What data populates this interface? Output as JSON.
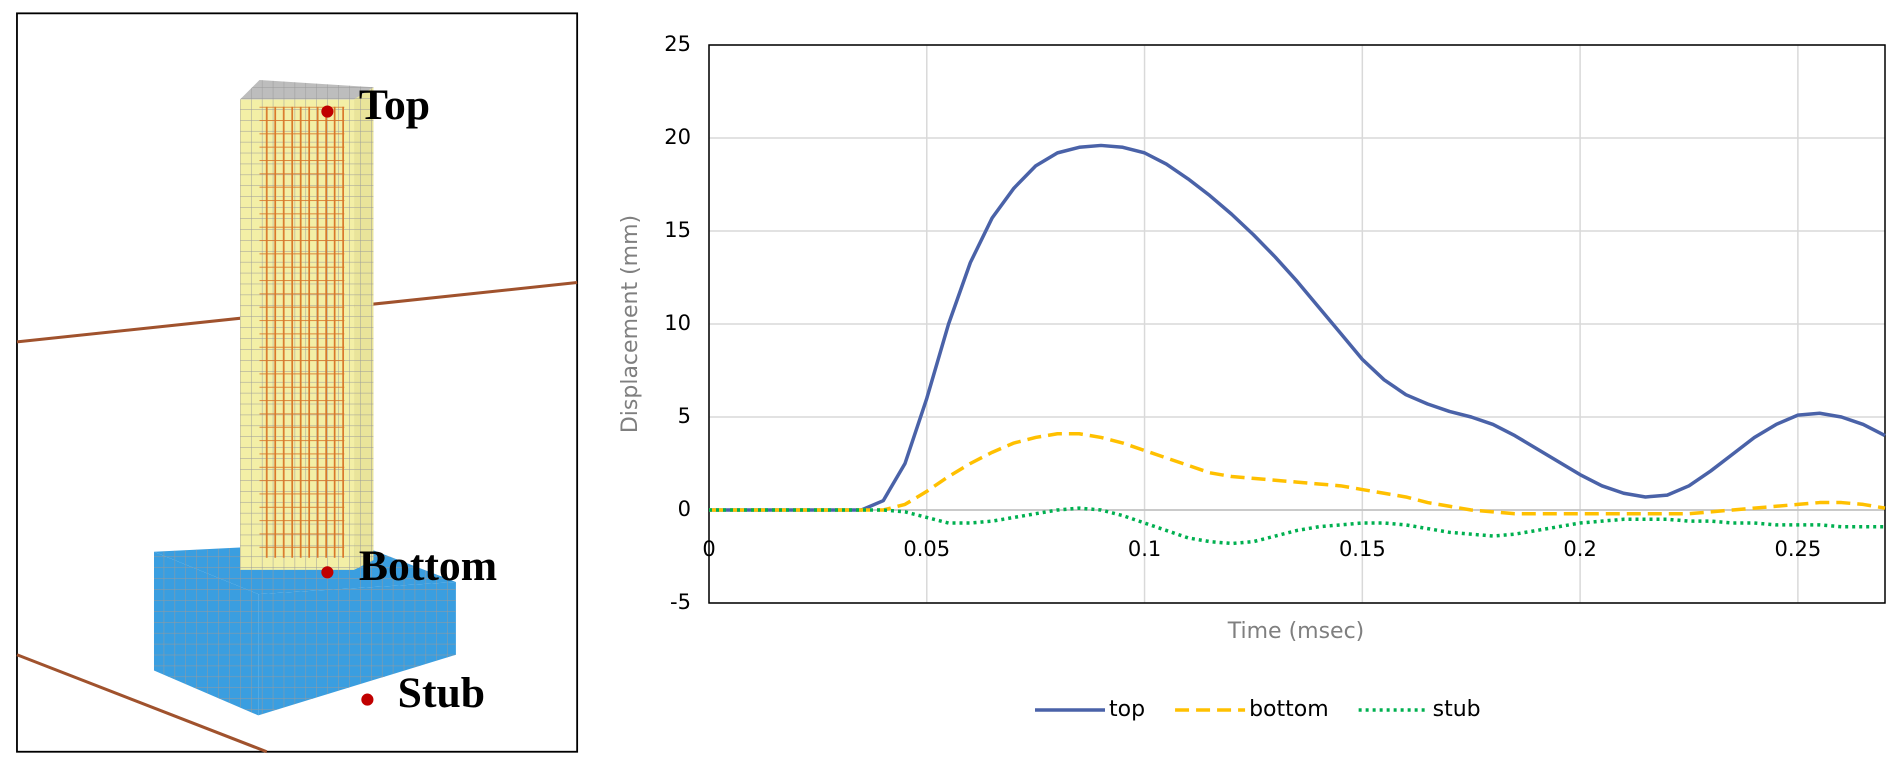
{
  "chart_data": {
    "type": "line",
    "annotations": [
      "Top",
      "Bottom",
      "Stub"
    ],
    "xlabel": "Time (msec)",
    "ylabel": "Displacement (mm)",
    "x": [
      0,
      0.005,
      0.01,
      0.015,
      0.02,
      0.025,
      0.03,
      0.035,
      0.04,
      0.045,
      0.05,
      0.055,
      0.06,
      0.065,
      0.07,
      0.075,
      0.08,
      0.085,
      0.09,
      0.095,
      0.1,
      0.105,
      0.11,
      0.115,
      0.12,
      0.125,
      0.13,
      0.135,
      0.14,
      0.145,
      0.15,
      0.155,
      0.16,
      0.165,
      0.17,
      0.175,
      0.18,
      0.185,
      0.19,
      0.195,
      0.2,
      0.205,
      0.21,
      0.215,
      0.22,
      0.225,
      0.23,
      0.235,
      0.24,
      0.245,
      0.25,
      0.255,
      0.26,
      0.265,
      0.27
    ],
    "series": [
      {
        "name": "top",
        "color": "#4a62a8",
        "style": "solid",
        "values": [
          0,
          0,
          0,
          0,
          0,
          0,
          0,
          0,
          0.5,
          2.5,
          6,
          10,
          13.3,
          15.7,
          17.3,
          18.5,
          19.2,
          19.5,
          19.6,
          19.5,
          19.2,
          18.6,
          17.8,
          16.9,
          15.9,
          14.8,
          13.6,
          12.3,
          10.9,
          9.5,
          8.1,
          7.0,
          6.2,
          5.7,
          5.3,
          5.0,
          4.6,
          4.0,
          3.3,
          2.6,
          1.9,
          1.3,
          0.9,
          0.7,
          0.8,
          1.3,
          2.1,
          3.0,
          3.9,
          4.6,
          5.1,
          5.2,
          5.0,
          4.6,
          4.0
        ]
      },
      {
        "name": "bottom",
        "color": "#ffc000",
        "style": "dashed",
        "values": [
          0,
          0,
          0,
          0,
          0,
          0,
          0,
          0,
          0,
          0.3,
          1.0,
          1.8,
          2.5,
          3.1,
          3.6,
          3.9,
          4.1,
          4.1,
          3.9,
          3.6,
          3.2,
          2.8,
          2.4,
          2.0,
          1.8,
          1.7,
          1.6,
          1.5,
          1.4,
          1.3,
          1.1,
          0.9,
          0.7,
          0.4,
          0.2,
          0.0,
          -0.1,
          -0.2,
          -0.2,
          -0.2,
          -0.2,
          -0.2,
          -0.2,
          -0.2,
          -0.2,
          -0.2,
          -0.1,
          0,
          0.1,
          0.2,
          0.3,
          0.4,
          0.4,
          0.3,
          0.1
        ]
      },
      {
        "name": "stub",
        "color": "#00b050",
        "style": "dotted",
        "values": [
          0,
          0,
          0,
          0,
          0,
          0,
          0,
          0,
          0,
          -0.1,
          -0.4,
          -0.7,
          -0.7,
          -0.6,
          -0.4,
          -0.2,
          0,
          0.1,
          0,
          -0.3,
          -0.7,
          -1.1,
          -1.5,
          -1.7,
          -1.8,
          -1.7,
          -1.4,
          -1.1,
          -0.9,
          -0.8,
          -0.7,
          -0.7,
          -0.8,
          -1.0,
          -1.2,
          -1.3,
          -1.4,
          -1.3,
          -1.1,
          -0.9,
          -0.7,
          -0.6,
          -0.5,
          -0.5,
          -0.5,
          -0.6,
          -0.6,
          -0.7,
          -0.7,
          -0.8,
          -0.8,
          -0.8,
          -0.9,
          -0.9,
          -0.9
        ]
      }
    ],
    "xlim": [
      0,
      0.27
    ],
    "xticks": [
      0,
      0.05,
      0.1,
      0.15,
      0.2,
      0.25
    ],
    "ylim": [
      -5,
      25
    ],
    "yticks": [
      -5,
      0,
      5,
      10,
      15,
      20,
      25
    ],
    "grid": true,
    "legend": "bottom"
  }
}
